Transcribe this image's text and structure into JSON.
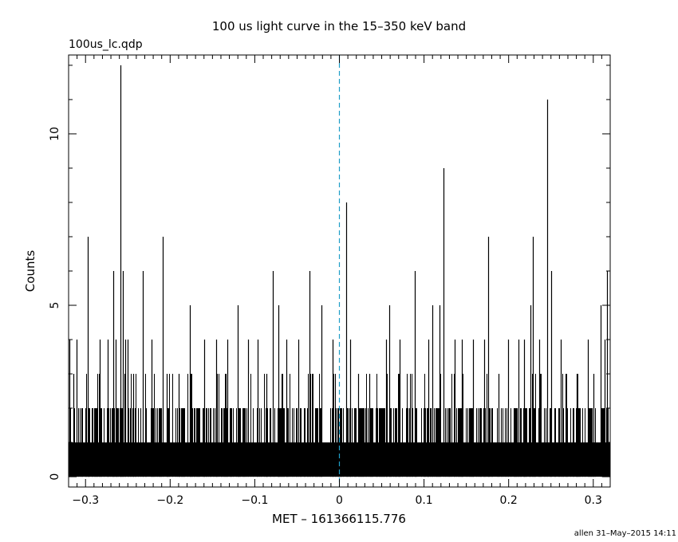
{
  "title": "100 us light curve in the 15–350 keV band",
  "filename": "100us_lc.qdp",
  "footer": "allen 31–May–2015 14:11",
  "colors": {
    "trigger_line": "#1f9ec7",
    "bars": "#000000",
    "frame": "#000000"
  },
  "chart_data": {
    "type": "bar",
    "xlabel": "MET – 161366115.776",
    "ylabel": "Counts",
    "xlim": [
      -0.32,
      0.32
    ],
    "ylim": [
      -0.3,
      12.3
    ],
    "x_ticks": [
      -0.3,
      -0.2,
      -0.1,
      0,
      0.1,
      0.2,
      0.3
    ],
    "x_tick_labels": [
      "−0.3",
      "−0.2",
      "−0.1",
      "0",
      "0.1",
      "0.2",
      "0.3"
    ],
    "y_ticks": [
      0,
      5,
      10
    ],
    "y_tick_labels": [
      "0",
      "5",
      "10"
    ],
    "bin_width": 0.0001,
    "baseline_counts": 1,
    "trigger_time": 0,
    "spikes": [
      {
        "x": -0.319,
        "y": 4
      },
      {
        "x": -0.314,
        "y": 3
      },
      {
        "x": -0.311,
        "y": 4
      },
      {
        "x": -0.297,
        "y": 7
      },
      {
        "x": -0.283,
        "y": 4
      },
      {
        "x": -0.274,
        "y": 4
      },
      {
        "x": -0.267,
        "y": 6
      },
      {
        "x": -0.264,
        "y": 4
      },
      {
        "x": -0.259,
        "y": 12
      },
      {
        "x": -0.256,
        "y": 6
      },
      {
        "x": -0.253,
        "y": 4
      },
      {
        "x": -0.25,
        "y": 4
      },
      {
        "x": -0.244,
        "y": 3
      },
      {
        "x": -0.232,
        "y": 6
      },
      {
        "x": -0.222,
        "y": 4
      },
      {
        "x": -0.209,
        "y": 7
      },
      {
        "x": -0.204,
        "y": 3
      },
      {
        "x": -0.19,
        "y": 3
      },
      {
        "x": -0.177,
        "y": 5
      },
      {
        "x": -0.16,
        "y": 4
      },
      {
        "x": -0.146,
        "y": 4
      },
      {
        "x": -0.132,
        "y": 4
      },
      {
        "x": -0.12,
        "y": 5
      },
      {
        "x": -0.108,
        "y": 4
      },
      {
        "x": -0.097,
        "y": 4
      },
      {
        "x": -0.086,
        "y": 3
      },
      {
        "x": -0.079,
        "y": 6
      },
      {
        "x": -0.072,
        "y": 5
      },
      {
        "x": -0.063,
        "y": 4
      },
      {
        "x": -0.049,
        "y": 4
      },
      {
        "x": -0.035,
        "y": 6
      },
      {
        "x": -0.021,
        "y": 5
      },
      {
        "x": -0.008,
        "y": 4
      },
      {
        "x": 0.008,
        "y": 8
      },
      {
        "x": 0.013,
        "y": 4
      },
      {
        "x": 0.022,
        "y": 3
      },
      {
        "x": 0.035,
        "y": 3
      },
      {
        "x": 0.055,
        "y": 4
      },
      {
        "x": 0.059,
        "y": 5
      },
      {
        "x": 0.071,
        "y": 4
      },
      {
        "x": 0.089,
        "y": 6
      },
      {
        "x": 0.105,
        "y": 4
      },
      {
        "x": 0.11,
        "y": 5
      },
      {
        "x": 0.118,
        "y": 5
      },
      {
        "x": 0.123,
        "y": 9
      },
      {
        "x": 0.136,
        "y": 4
      },
      {
        "x": 0.145,
        "y": 4
      },
      {
        "x": 0.158,
        "y": 4
      },
      {
        "x": 0.171,
        "y": 4
      },
      {
        "x": 0.176,
        "y": 7
      },
      {
        "x": 0.188,
        "y": 3
      },
      {
        "x": 0.199,
        "y": 4
      },
      {
        "x": 0.212,
        "y": 4
      },
      {
        "x": 0.218,
        "y": 4
      },
      {
        "x": 0.226,
        "y": 5
      },
      {
        "x": 0.229,
        "y": 7
      },
      {
        "x": 0.236,
        "y": 4
      },
      {
        "x": 0.246,
        "y": 11
      },
      {
        "x": 0.25,
        "y": 6
      },
      {
        "x": 0.262,
        "y": 4
      },
      {
        "x": 0.28,
        "y": 3
      },
      {
        "x": 0.294,
        "y": 4
      },
      {
        "x": 0.3,
        "y": 3
      },
      {
        "x": 0.309,
        "y": 5
      },
      {
        "x": 0.313,
        "y": 4
      },
      {
        "x": 0.316,
        "y": 6
      }
    ]
  }
}
